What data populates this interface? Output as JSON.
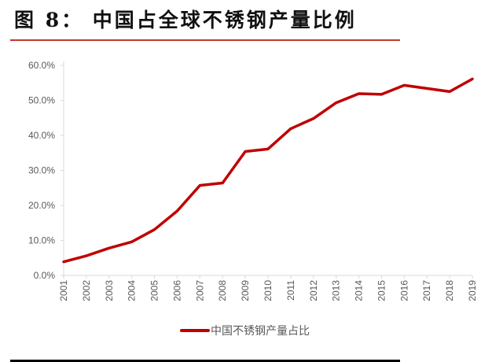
{
  "title": "图 8： 中国占全球不锈钢产量比例",
  "chart_data": {
    "type": "line",
    "title": "图 8： 中国占全球不锈钢产量比例",
    "categories": [
      "2001",
      "2002",
      "2003",
      "2004",
      "2005",
      "2006",
      "2007",
      "2008",
      "2009",
      "2010",
      "2011",
      "2012",
      "2013",
      "2014",
      "2015",
      "2016",
      "2017",
      "2018",
      "2019"
    ],
    "series": [
      {
        "name": "中国不锈钢产量占比",
        "color": "#c00000",
        "values": [
          3.9,
          5.6,
          7.8,
          9.6,
          13.1,
          18.4,
          25.7,
          26.4,
          35.4,
          36.1,
          41.9,
          44.8,
          49.3,
          51.9,
          51.7,
          54.3,
          53.4,
          52.5,
          56.1
        ]
      }
    ],
    "ylim": [
      0,
      60
    ],
    "yticks": [
      "0.0%",
      "10.0%",
      "20.0%",
      "30.0%",
      "40.0%",
      "50.0%",
      "60.0%"
    ],
    "y_unit": "%",
    "grid": false,
    "legend": "bottom"
  }
}
